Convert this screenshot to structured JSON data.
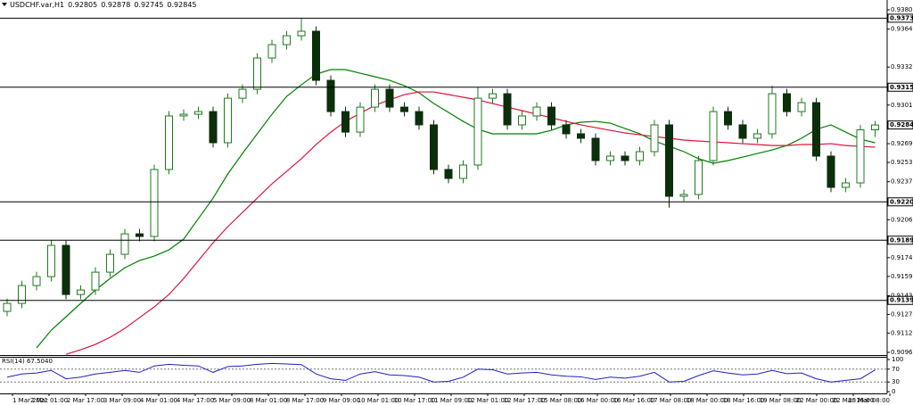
{
  "chart_data": {
    "type": "candlestick",
    "title": "USDCHF.var,H1",
    "ohlc": {
      "open": [
        0.913,
        0.91366,
        0.91514,
        0.91588,
        0.91847,
        0.9144,
        0.91477,
        0.91625,
        0.91773,
        0.91943,
        0.91921,
        0.92476,
        0.9292,
        0.92934,
        0.92956,
        0.92698,
        0.93067,
        0.93141,
        0.934,
        0.93511,
        0.93585,
        0.93622,
        0.93215,
        0.92956,
        0.92786,
        0.92993,
        0.93141,
        0.92993,
        0.92956,
        0.92846,
        0.92476,
        0.92402,
        0.92513,
        0.93067,
        0.93104,
        0.92846,
        0.9292,
        0.92993,
        0.92846,
        0.92772,
        0.92735,
        0.9255,
        0.92587,
        0.9255,
        0.92624,
        0.92846,
        0.92254,
        0.92269,
        0.9255,
        0.92956,
        0.92846,
        0.92735,
        0.92772,
        0.93104,
        0.92956,
        0.9303,
        0.92587,
        0.92328,
        0.92365,
        0.92805
      ],
      "high": [
        0.91406,
        0.91554,
        0.91628,
        0.91887,
        0.91887,
        0.91517,
        0.91665,
        0.91813,
        0.91983,
        0.91983,
        0.92516,
        0.9296,
        0.92974,
        0.92996,
        0.92996,
        0.93107,
        0.93181,
        0.9344,
        0.93551,
        0.93625,
        0.9373,
        0.93662,
        0.93255,
        0.92996,
        0.93033,
        0.93181,
        0.93181,
        0.93033,
        0.92996,
        0.92886,
        0.92516,
        0.92553,
        0.93158,
        0.93144,
        0.93144,
        0.9296,
        0.93033,
        0.93033,
        0.92886,
        0.92812,
        0.92775,
        0.92627,
        0.92627,
        0.92664,
        0.92886,
        0.92886,
        0.92309,
        0.9259,
        0.92996,
        0.92996,
        0.92886,
        0.92812,
        0.9317,
        0.93144,
        0.9307,
        0.9307,
        0.92627,
        0.92405,
        0.92845,
        0.92878
      ],
      "low": [
        0.9126,
        0.91326,
        0.91474,
        0.91548,
        0.914,
        0.914,
        0.91437,
        0.91585,
        0.91733,
        0.91881,
        0.91881,
        0.92436,
        0.9288,
        0.92894,
        0.92658,
        0.92658,
        0.93027,
        0.93101,
        0.9336,
        0.93471,
        0.93545,
        0.93175,
        0.92916,
        0.92746,
        0.92746,
        0.92953,
        0.92953,
        0.92916,
        0.92806,
        0.92436,
        0.92362,
        0.92362,
        0.92473,
        0.93027,
        0.92806,
        0.92806,
        0.9288,
        0.92806,
        0.92732,
        0.92695,
        0.9251,
        0.9251,
        0.9251,
        0.9251,
        0.92584,
        0.9216,
        0.92214,
        0.92229,
        0.9251,
        0.92806,
        0.92695,
        0.92695,
        0.92732,
        0.92916,
        0.92916,
        0.92547,
        0.92288,
        0.92288,
        0.92325,
        0.92745
      ],
      "close": [
        0.91366,
        0.91514,
        0.91588,
        0.91847,
        0.9144,
        0.91477,
        0.91625,
        0.91773,
        0.91943,
        0.91921,
        0.92476,
        0.9292,
        0.92934,
        0.92956,
        0.92698,
        0.93067,
        0.93141,
        0.934,
        0.93511,
        0.93585,
        0.93622,
        0.93215,
        0.92956,
        0.92786,
        0.92993,
        0.93141,
        0.92993,
        0.92956,
        0.92846,
        0.92476,
        0.92402,
        0.92513,
        0.93067,
        0.93104,
        0.92846,
        0.9292,
        0.92993,
        0.92846,
        0.92772,
        0.92735,
        0.9255,
        0.92587,
        0.9255,
        0.92624,
        0.92846,
        0.92254,
        0.92269,
        0.9255,
        0.92956,
        0.92846,
        0.92735,
        0.92772,
        0.93104,
        0.92956,
        0.9303,
        0.92587,
        0.92328,
        0.92365,
        0.92805,
        0.92845
      ]
    },
    "up_color": "#1f7a1f",
    "down_color": "#0b2e0b",
    "series": [
      {
        "color": "#008000",
        "values": [
          null,
          null,
          0.90997,
          0.91144,
          0.91255,
          0.91366,
          0.91477,
          0.91573,
          0.91662,
          0.91721,
          0.91758,
          0.9181,
          0.91899,
          0.92069,
          0.92239,
          0.92439,
          0.92609,
          0.92772,
          0.92934,
          0.93082,
          0.93178,
          0.93267,
          0.93304,
          0.93304,
          0.93274,
          0.93245,
          0.93215,
          0.93171,
          0.93112,
          0.93023,
          0.92949,
          0.92875,
          0.92809,
          0.92772,
          0.92772,
          0.92772,
          0.92772,
          0.92801,
          0.92846,
          0.92868,
          0.92875,
          0.9286,
          0.92816,
          0.92772,
          0.92712,
          0.92668,
          0.92624,
          0.92565,
          0.92528,
          0.9255,
          0.92579,
          0.92609,
          0.92638,
          0.92675,
          0.92735,
          0.92809,
          0.92846,
          0.92786,
          0.92727,
          0.92698
        ]
      },
      {
        "color": "#dc143c",
        "values": [
          null,
          null,
          null,
          null,
          0.90944,
          0.90982,
          0.91026,
          0.91085,
          0.91159,
          0.91248,
          0.91337,
          0.9144,
          0.91573,
          0.91721,
          0.91869,
          0.92002,
          0.92121,
          0.92239,
          0.92357,
          0.92461,
          0.92565,
          0.92683,
          0.92786,
          0.92875,
          0.92942,
          0.93008,
          0.93053,
          0.93097,
          0.93119,
          0.93119,
          0.93097,
          0.93075,
          0.93053,
          0.93023,
          0.92993,
          0.92964,
          0.92934,
          0.92905,
          0.92875,
          0.92846,
          0.92823,
          0.92801,
          0.92779,
          0.92764,
          0.92749,
          0.92735,
          0.9272,
          0.92712,
          0.92705,
          0.92698,
          0.9269,
          0.92683,
          0.92675,
          0.92675,
          0.92683,
          0.92683,
          0.9269,
          0.92675,
          0.92668,
          0.92661
        ]
      }
    ],
    "ylim": [
      0.90938,
      0.93881
    ],
    "yticks": [
      {
        "value": 0.938,
        "label": "0.93800"
      },
      {
        "value": 0.9364,
        "label": "0.93640"
      },
      0.93325,
      {
        "value": 0.9301,
        "label": "0.93010"
      },
      {
        "value": 0.9269,
        "label": "0.92690"
      },
      0.92535,
      0.92375,
      {
        "value": 0.9206,
        "label": "0.92060"
      },
      0.91745,
      {
        "value": 0.9159,
        "label": "0.91590"
      },
      {
        "value": 0.9143,
        "label": "0.91430"
      },
      0.91275,
      {
        "value": 0.9112,
        "label": "0.91120"
      },
      {
        "value": 0.9096,
        "label": "0.90960"
      }
    ],
    "levels": [
      {
        "value": 0.9373,
        "label": "0.93730"
      },
      {
        "value": 0.93158,
        "label": "0.93158"
      },
      {
        "value": 0.92208,
        "label": "0.92208"
      },
      {
        "value": 0.9189,
        "label": "0.91890"
      },
      {
        "value": 0.91391,
        "label": "0.91391"
      }
    ],
    "xtick_labels": [
      "1 Mar 2021",
      "2 Mar 01:00",
      "2 Mar 17:00",
      "3 Mar 09:00",
      "4 Mar 01:00",
      "4 Mar 17:00",
      "5 Mar 09:00",
      "8 Mar 01:00",
      "8 Mar 17:00",
      "9 Mar 09:00",
      "10 Mar 01:00",
      "10 Mar 17:00",
      "11 Mar 09:00",
      "12 Mar 01:00",
      "12 Mar 17:00",
      "15 Mar 08:00",
      "16 Mar 00:00",
      "16 Mar 16:00",
      "17 Mar 08:00",
      "18 Mar 00:00",
      "18 Mar 16:00",
      "19 Mar 08:00",
      "22 Mar 00:00",
      "22 Mar 16:00",
      "23 Mar 08:00"
    ],
    "rsi": {
      "label": "RSI(14) 67.5040",
      "color": "#2020c0",
      "ylim": [
        0,
        100
      ],
      "yticks": [
        0,
        30,
        70,
        100
      ],
      "levels": [
        30,
        70
      ],
      "values": [
        45,
        55,
        58,
        66,
        40,
        45,
        55,
        60,
        66,
        60,
        80,
        85,
        82,
        80,
        60,
        78,
        80,
        85,
        88,
        86,
        84,
        55,
        40,
        35,
        55,
        62,
        52,
        50,
        45,
        30,
        32,
        45,
        70,
        68,
        55,
        58,
        60,
        52,
        48,
        46,
        38,
        45,
        42,
        48,
        60,
        30,
        32,
        50,
        65,
        58,
        52,
        55,
        66,
        56,
        58,
        40,
        30,
        35,
        40,
        67.504
      ]
    }
  }
}
